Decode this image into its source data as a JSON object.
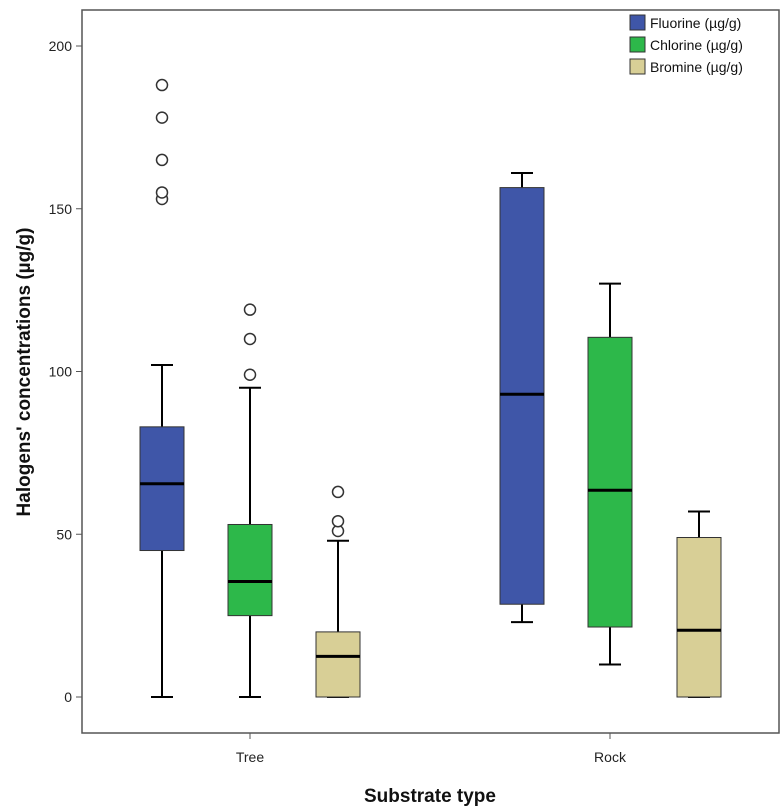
{
  "chart_data": {
    "type": "boxplot",
    "title": "",
    "xlabel": "Substrate type",
    "ylabel": "Halogens' concentrations (µg/g)",
    "ylim": [
      -10,
      212
    ],
    "yticks": [
      0,
      50,
      100,
      150,
      200
    ],
    "grid": false,
    "legend_position": "top-right",
    "categories": [
      "Tree",
      "Rock"
    ],
    "series": [
      {
        "name": "Fluorine (µg/g)",
        "color": "#3f56a8",
        "boxes": [
          {
            "min": 0,
            "q1": 45,
            "median": 65.5,
            "q3": 83,
            "max": 102,
            "outliers": [
              153,
              155,
              165,
              178,
              188
            ]
          },
          {
            "min": 23,
            "q1": 28.5,
            "median": 93,
            "q3": 156.5,
            "max": 161,
            "outliers": []
          }
        ]
      },
      {
        "name": "Chlorine (µg/g)",
        "color": "#2db84a",
        "boxes": [
          {
            "min": 0,
            "q1": 25,
            "median": 35.5,
            "q3": 53,
            "max": 95,
            "outliers": [
              99,
              110,
              119
            ]
          },
          {
            "min": 10,
            "q1": 21.5,
            "median": 63.5,
            "q3": 110.5,
            "max": 127,
            "outliers": []
          }
        ]
      },
      {
        "name": "Bromine (µg/g)",
        "color": "#d8cf96",
        "boxes": [
          {
            "min": 0,
            "q1": 0,
            "median": 12.5,
            "q3": 20,
            "max": 48,
            "outliers": [
              51,
              54,
              63
            ]
          },
          {
            "min": 0,
            "q1": 0,
            "median": 20.5,
            "q3": 49,
            "max": 57,
            "outliers": []
          }
        ]
      }
    ]
  }
}
